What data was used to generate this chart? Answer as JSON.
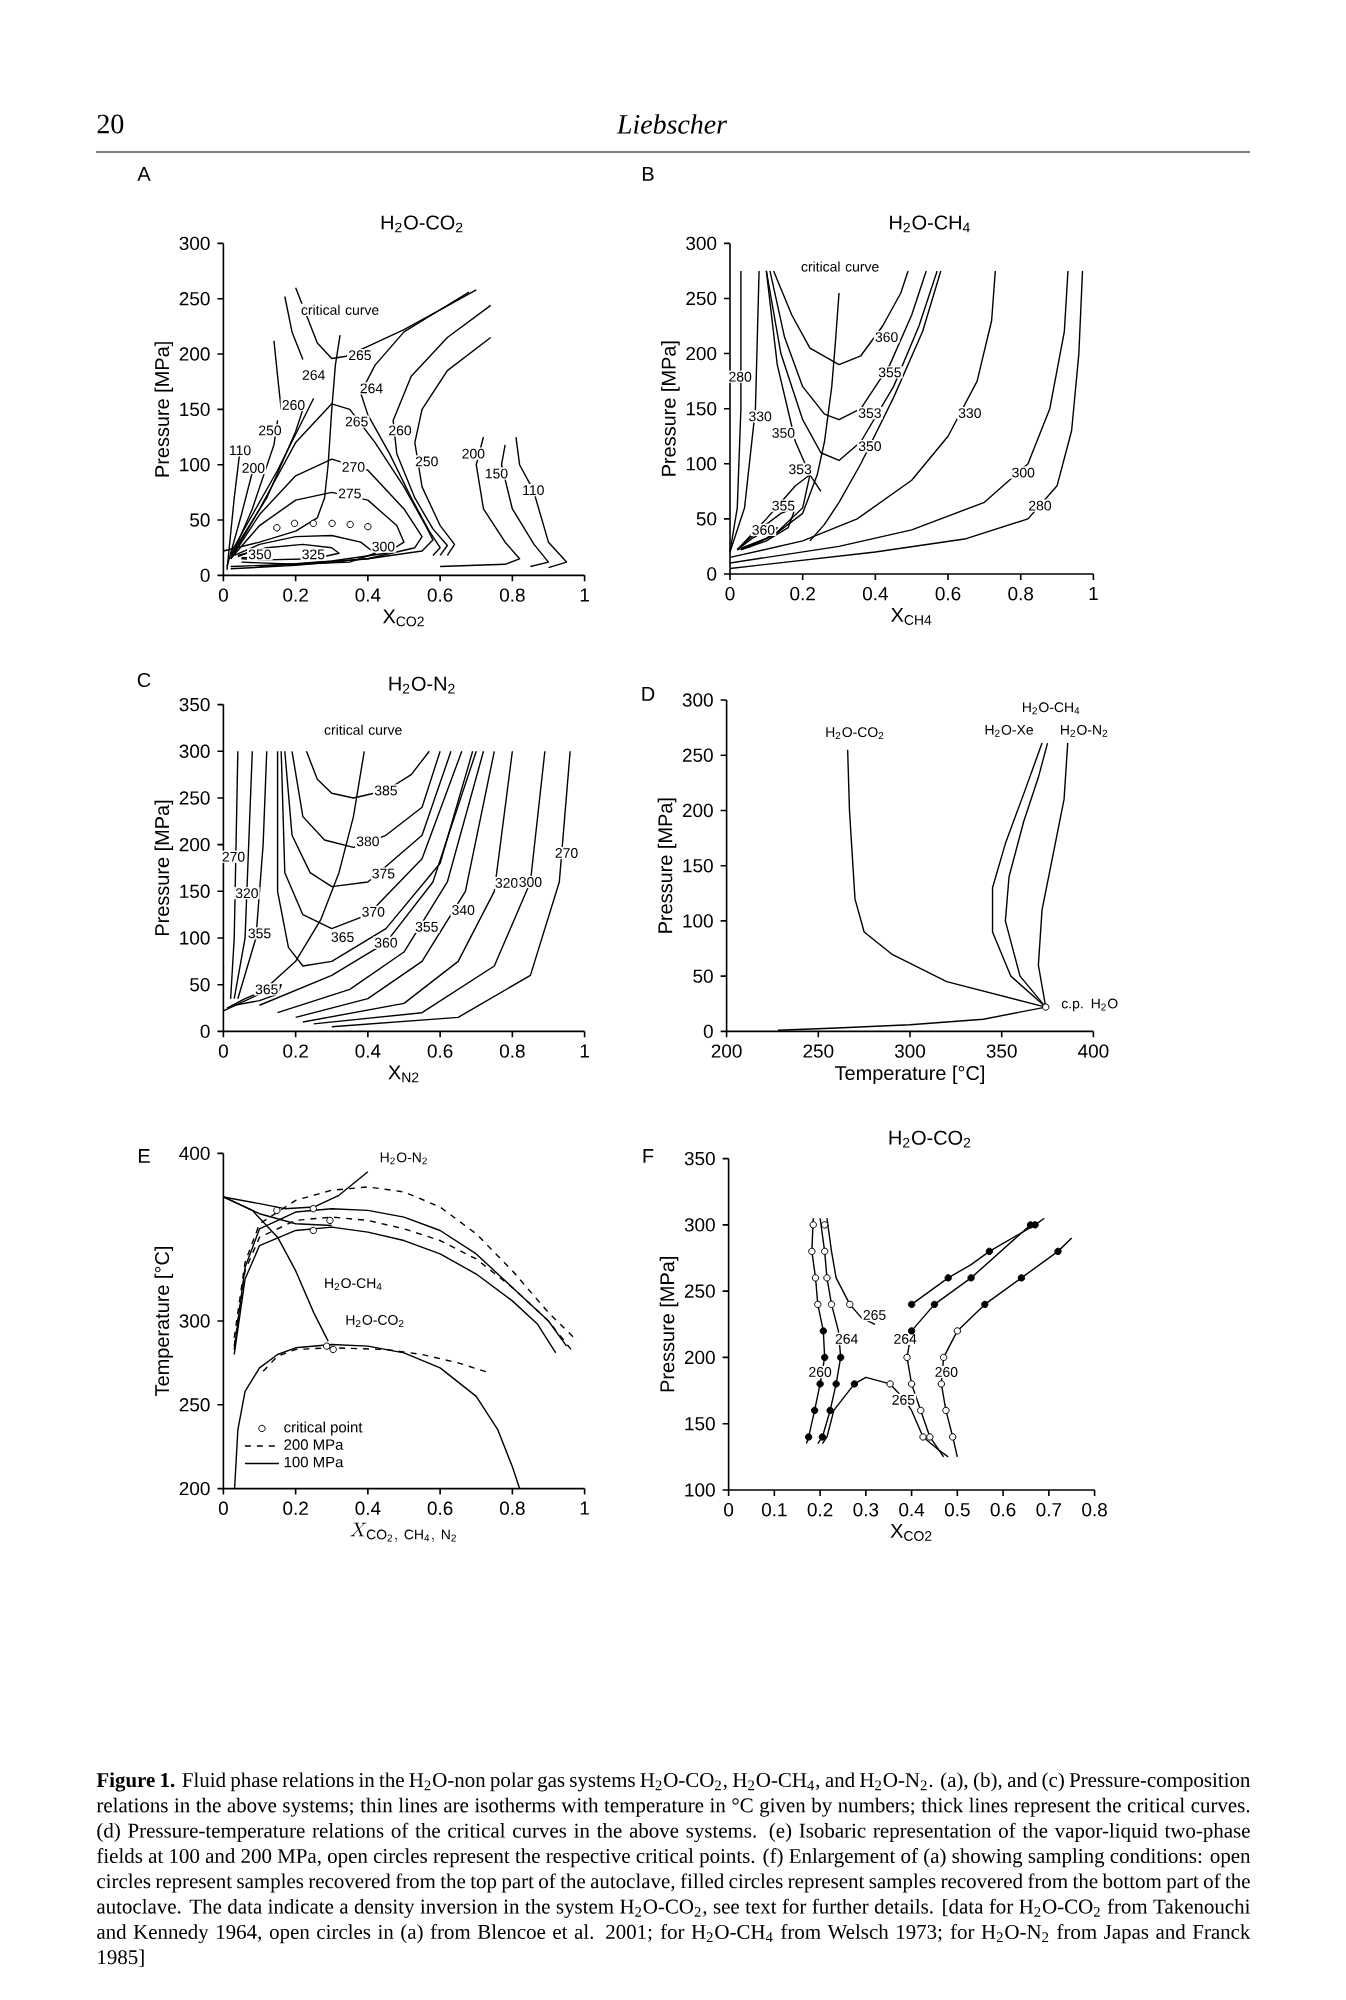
{
  "chart_data": [
    {
      "type": "other",
      "title": "Liebscher",
      "annotations": [
        "20"
      ]
    },
    {
      "type": "line",
      "title": "H$_{2}$O-CO$_{2}$",
      "xlabel": "X$_{CO2}$",
      "ylabel": "Pressure [MPa]",
      "xlim": [
        0,
        1
      ],
      "ylim": [
        0,
        300
      ],
      "xticks": [
        0,
        0.2,
        0.4,
        0.6,
        0.8,
        1
      ],
      "yticks": [
        0,
        50,
        100,
        150,
        200,
        250,
        300
      ],
      "series": [
        {
          "type": "line",
          "color": "#000000",
          "x": [
            0.0,
            0.1,
            0.2,
            0.26,
            0.28,
            0.29,
            0.3,
            0.31,
            0.323
          ],
          "values": [
            22,
            30,
            40,
            52,
            70,
            100,
            150,
            190,
            217
          ]
        },
        {
          "type": "scatter",
          "marker": "circle",
          "color": "#ffffff",
          "x": [
            0.148,
            0.197,
            0.249,
            0.301,
            0.351,
            0.4
          ],
          "values": [
            43,
            47,
            47,
            47,
            46,
            44
          ]
        },
        {
          "type": "line",
          "color": "#000000",
          "x": [
            0.2,
            0.23,
            0.26,
            0.3,
            0.34,
            0.4,
            0.5,
            0.6,
            0.68
          ],
          "values": [
            260,
            235,
            210,
            196,
            198,
            207,
            222,
            240,
            256
          ]
        },
        {
          "type": "line",
          "color": "#000000",
          "x": [
            0.7,
            0.6,
            0.5,
            0.42,
            0.38,
            0.4,
            0.46,
            0.52,
            0.57,
            0.6,
            0.58
          ],
          "values": [
            258,
            240,
            220,
            190,
            165,
            145,
            110,
            70,
            40,
            25,
            18
          ]
        },
        {
          "type": "line",
          "color": "#000000",
          "x": [
            0.74,
            0.62,
            0.52,
            0.47,
            0.48,
            0.53,
            0.58,
            0.62,
            0.6
          ],
          "values": [
            244,
            215,
            180,
            140,
            110,
            70,
            42,
            27,
            18
          ]
        },
        {
          "type": "line",
          "color": "#000000",
          "x": [
            0.74,
            0.62,
            0.55,
            0.53,
            0.55,
            0.6,
            0.64,
            0.62
          ],
          "values": [
            215,
            185,
            150,
            120,
            80,
            45,
            28,
            18
          ]
        },
        {
          "type": "line",
          "color": "#000000",
          "x": [
            0.72,
            0.7,
            0.72,
            0.78,
            0.82,
            0.78,
            0.6
          ],
          "values": [
            125,
            100,
            60,
            30,
            15,
            10,
            8
          ]
        },
        {
          "type": "line",
          "color": "#000000",
          "x": [
            0.78,
            0.77,
            0.8,
            0.86,
            0.9,
            0.85
          ],
          "values": [
            118,
            100,
            60,
            28,
            12,
            8
          ]
        },
        {
          "type": "line",
          "color": "#000000",
          "x": [
            0.81,
            0.82,
            0.858,
            0.9,
            0.95,
            0.9
          ],
          "values": [
            125,
            100,
            77,
            30,
            12,
            7
          ]
        },
        {
          "type": "line",
          "color": "#000000",
          "x": [
            0.01,
            0.03,
            0.046
          ],
          "values": [
            5,
            70,
            113
          ]
        },
        {
          "type": "line",
          "color": "#000000",
          "x": [
            0.01,
            0.05,
            0.083
          ],
          "values": [
            8,
            55,
            97
          ]
        },
        {
          "type": "line",
          "color": "#000000",
          "x": [
            0.02,
            0.08,
            0.14,
            0.15
          ],
          "values": [
            15,
            60,
            118,
            140
          ]
        },
        {
          "type": "line",
          "color": "#000000",
          "x": [
            0.02,
            0.12,
            0.2,
            0.22
          ],
          "values": [
            18,
            70,
            130,
            150
          ]
        },
        {
          "type": "line",
          "color": "#000000",
          "x": [
            0.02,
            0.15,
            0.25
          ],
          "values": [
            20,
            95,
            160
          ]
        },
        {
          "type": "line",
          "color": "#000000",
          "x": [
            0.17,
            0.19,
            0.22
          ],
          "values": [
            252,
            220,
            195
          ]
        },
        {
          "type": "line",
          "color": "#000000",
          "x": [
            0.14,
            0.15,
            0.16
          ],
          "values": [
            212,
            180,
            150
          ]
        },
        {
          "type": "line",
          "color": "#000000",
          "x": [
            0.02,
            0.1,
            0.2,
            0.3,
            0.35,
            0.42,
            0.5,
            0.56,
            0.58,
            0.55,
            0.4,
            0.2,
            0.02
          ],
          "values": [
            15,
            60,
            120,
            155,
            150,
            120,
            80,
            45,
            32,
            22,
            15,
            10,
            8
          ]
        },
        {
          "type": "line",
          "color": "#000000",
          "x": [
            0.02,
            0.1,
            0.2,
            0.3,
            0.4,
            0.5,
            0.55,
            0.53,
            0.4,
            0.2,
            0.02
          ],
          "values": [
            15,
            55,
            90,
            105,
            95,
            60,
            35,
            25,
            15,
            9,
            6
          ]
        },
        {
          "type": "line",
          "color": "#000000",
          "x": [
            0.02,
            0.1,
            0.2,
            0.3,
            0.4,
            0.48,
            0.5,
            0.45,
            0.3,
            0.1
          ],
          "values": [
            15,
            45,
            68,
            75,
            68,
            45,
            30,
            20,
            13,
            8
          ]
        },
        {
          "type": "line",
          "color": "#000000",
          "x": [
            0.03,
            0.1,
            0.2,
            0.3,
            0.38,
            0.42,
            0.35,
            0.2,
            0.05
          ],
          "values": [
            18,
            28,
            35,
            36,
            30,
            20,
            12,
            10,
            12
          ]
        },
        {
          "type": "line",
          "color": "#000000",
          "x": [
            0.04,
            0.12,
            0.22,
            0.3,
            0.32,
            0.25,
            0.12,
            0.05
          ],
          "values": [
            18,
            25,
            28,
            25,
            20,
            15,
            14,
            15
          ]
        },
        {
          "type": "line",
          "color": "#000000",
          "x": [
            0.04,
            0.08,
            0.12,
            0.1,
            0.05
          ],
          "values": [
            17,
            22,
            21,
            16,
            16
          ]
        }
      ],
      "annotations": [
        "A",
        "critical curve",
        {
          "text": "110",
          "x": 0.046,
          "y": 113
        },
        {
          "text": "200",
          "x": 0.083,
          "y": 97
        },
        {
          "text": "250",
          "x": 0.129,
          "y": 131
        },
        {
          "text": "260",
          "x": 0.194,
          "y": 154
        },
        {
          "text": "264",
          "x": 0.25,
          "y": 181
        },
        {
          "text": "265",
          "x": 0.378,
          "y": 199
        },
        {
          "text": "264",
          "x": 0.41,
          "y": 169
        },
        {
          "text": "265",
          "x": 0.369,
          "y": 139
        },
        {
          "text": "260",
          "x": 0.489,
          "y": 131
        },
        {
          "text": "250",
          "x": 0.563,
          "y": 103
        },
        {
          "text": "270",
          "x": 0.36,
          "y": 98
        },
        {
          "text": "275",
          "x": 0.35,
          "y": 74
        },
        {
          "text": "300",
          "x": 0.443,
          "y": 26
        },
        {
          "text": "325",
          "x": 0.249,
          "y": 19
        },
        {
          "text": "350",
          "x": 0.101,
          "y": 19
        },
        {
          "text": "200",
          "x": 0.692,
          "y": 110
        },
        {
          "text": "150",
          "x": 0.756,
          "y": 92
        },
        {
          "text": "110",
          "x": 0.858,
          "y": 77
        }
      ]
    },
    {
      "type": "line",
      "title": "H$_{2}$O-CH$_{4}$",
      "xlabel": "X$_{CH4}$",
      "ylabel": "Pressure [MPa]",
      "xlim": [
        0,
        1
      ],
      "ylim": [
        0,
        300
      ],
      "xticks": [
        0,
        0.2,
        0.4,
        0.6,
        0.8,
        1
      ],
      "yticks": [
        0,
        50,
        100,
        150,
        200,
        250,
        300
      ],
      "series": [
        {
          "type": "line",
          "color": "#000000",
          "x": [
            0.02,
            0.12,
            0.2,
            0.24,
            0.26,
            0.28,
            0.29,
            0.3
          ],
          "values": [
            22,
            35,
            55,
            90,
            120,
            170,
            210,
            255
          ]
        },
        {
          "type": "line",
          "color": "#000000",
          "x": [
            0.12,
            0.17,
            0.22,
            0.3,
            0.36,
            0.42,
            0.47,
            0.49
          ],
          "values": [
            275,
            235,
            205,
            190,
            198,
            225,
            255,
            275
          ]
        },
        {
          "type": "line",
          "color": "#000000",
          "x": [
            0.11,
            0.15,
            0.2,
            0.26,
            0.3,
            0.36,
            0.44,
            0.5,
            0.54
          ],
          "values": [
            275,
            215,
            170,
            145,
            140,
            150,
            190,
            235,
            275
          ]
        },
        {
          "type": "line",
          "color": "#000000",
          "x": [
            0.1,
            0.14,
            0.2,
            0.25,
            0.3,
            0.36,
            0.45,
            0.52,
            0.57
          ],
          "values": [
            275,
            200,
            140,
            110,
            103,
            120,
            170,
            225,
            275
          ]
        },
        {
          "type": "line",
          "color": "#000000",
          "x": [
            0.1,
            0.13,
            0.18,
            0.22,
            0.25
          ],
          "values": [
            275,
            190,
            120,
            90,
            75
          ]
        },
        {
          "type": "line",
          "color": "#000000",
          "x": [
            0.22,
            0.26,
            0.3,
            0.36,
            0.45,
            0.53,
            0.58
          ],
          "values": [
            30,
            45,
            65,
            100,
            160,
            220,
            275
          ]
        },
        {
          "type": "line",
          "color": "#000000",
          "x": [
            0.0,
            0.02,
            0.03,
            0.03
          ],
          "values": [
            20,
            60,
            150,
            275
          ]
        },
        {
          "type": "line",
          "color": "#000000",
          "x": [
            0.0,
            0.04,
            0.07,
            0.08
          ],
          "values": [
            20,
            60,
            150,
            275
          ]
        },
        {
          "type": "line",
          "color": "#000000",
          "x": [
            0.02,
            0.1,
            0.18,
            0.22,
            0.2,
            0.12,
            0.03
          ],
          "values": [
            22,
            50,
            80,
            90,
            60,
            35,
            22
          ]
        },
        {
          "type": "line",
          "color": "#000000",
          "x": [
            0.02,
            0.08,
            0.14,
            0.18,
            0.16,
            0.1,
            0.03
          ],
          "values": [
            22,
            40,
            55,
            60,
            42,
            30,
            22
          ]
        },
        {
          "type": "line",
          "color": "#000000",
          "x": [
            0.02,
            0.06,
            0.1,
            0.13,
            0.1,
            0.05
          ],
          "values": [
            22,
            32,
            40,
            42,
            32,
            24
          ]
        },
        {
          "type": "line",
          "color": "#000000",
          "x": [
            0.0,
            0.2,
            0.35,
            0.5,
            0.6,
            0.68,
            0.72,
            0.73
          ],
          "values": [
            15,
            30,
            50,
            85,
            125,
            175,
            230,
            275
          ]
        },
        {
          "type": "line",
          "color": "#000000",
          "x": [
            0.0,
            0.3,
            0.5,
            0.7,
            0.82,
            0.88,
            0.92,
            0.93
          ],
          "values": [
            10,
            25,
            40,
            65,
            100,
            150,
            220,
            275
          ]
        },
        {
          "type": "line",
          "color": "#000000",
          "x": [
            0.0,
            0.4,
            0.65,
            0.82,
            0.9,
            0.94,
            0.96,
            0.97
          ],
          "values": [
            5,
            20,
            32,
            50,
            80,
            130,
            200,
            275
          ]
        }
      ],
      "annotations": [
        "B",
        "critical curve",
        {
          "text": "280",
          "x": 0.028,
          "y": 179
        },
        {
          "text": "330",
          "x": 0.083,
          "y": 143
        },
        {
          "text": "350",
          "x": 0.147,
          "y": 128
        },
        {
          "text": "360",
          "x": 0.431,
          "y": 215
        },
        {
          "text": "355",
          "x": 0.44,
          "y": 183
        },
        {
          "text": "353",
          "x": 0.385,
          "y": 146
        },
        {
          "text": "350",
          "x": 0.385,
          "y": 116
        },
        {
          "text": "353",
          "x": 0.193,
          "y": 95
        },
        {
          "text": "355",
          "x": 0.147,
          "y": 62
        },
        {
          "text": "360",
          "x": 0.092,
          "y": 40
        },
        {
          "text": "330",
          "x": 0.66,
          "y": 146
        },
        {
          "text": "300",
          "x": 0.807,
          "y": 92
        },
        {
          "text": "280",
          "x": 0.853,
          "y": 62
        }
      ]
    },
    {
      "type": "line",
      "title": "H$_{2}$O-N$_{2}$",
      "xlabel": "X$_{N2}$",
      "ylabel": "Pressure [MPa]",
      "xlim": [
        0,
        1
      ],
      "ylim": [
        0,
        350
      ],
      "xticks": [
        0,
        0.2,
        0.4,
        0.6,
        0.8,
        1
      ],
      "yticks": [
        0,
        50,
        100,
        150,
        200,
        250,
        300,
        350
      ],
      "series": [
        {
          "type": "line",
          "color": "#000000",
          "x": [
            0,
            0.1,
            0.2,
            0.27,
            0.32,
            0.36,
            0.39
          ],
          "values": [
            22,
            40,
            75,
            120,
            170,
            230,
            300
          ]
        },
        {
          "type": "line",
          "color": "#000000",
          "x": [
            0.23,
            0.26,
            0.3,
            0.36,
            0.45,
            0.52,
            0.57
          ],
          "values": [
            300,
            270,
            255,
            250,
            258,
            275,
            300
          ]
        },
        {
          "type": "line",
          "color": "#000000",
          "x": [
            0.19,
            0.22,
            0.28,
            0.36,
            0.45,
            0.55,
            0.6
          ],
          "values": [
            300,
            230,
            205,
            197,
            210,
            240,
            300
          ]
        },
        {
          "type": "line",
          "color": "#000000",
          "x": [
            0.17,
            0.19,
            0.24,
            0.3,
            0.4,
            0.55,
            0.63
          ],
          "values": [
            300,
            210,
            170,
            155,
            160,
            210,
            300
          ]
        },
        {
          "type": "line",
          "color": "#000000",
          "x": [
            0.16,
            0.17,
            0.22,
            0.3,
            0.4,
            0.55,
            0.66
          ],
          "values": [
            300,
            170,
            125,
            110,
            125,
            185,
            300
          ]
        },
        {
          "type": "line",
          "color": "#000000",
          "x": [
            0.15,
            0.15,
            0.18,
            0.22,
            0.3,
            0.45,
            0.6,
            0.69
          ],
          "values": [
            300,
            150,
            90,
            70,
            75,
            110,
            180,
            300
          ]
        },
        {
          "type": "line",
          "color": "#000000",
          "x": [
            0.1,
            0.3,
            0.45,
            0.58,
            0.7
          ],
          "values": [
            28,
            60,
            95,
            160,
            300
          ]
        },
        {
          "type": "line",
          "color": "#000000",
          "x": [
            0.15,
            0.35,
            0.5,
            0.62,
            0.72
          ],
          "values": [
            20,
            45,
            85,
            160,
            300
          ]
        },
        {
          "type": "line",
          "color": "#000000",
          "x": [
            0.2,
            0.4,
            0.55,
            0.67,
            0.75
          ],
          "values": [
            15,
            35,
            75,
            150,
            300
          ]
        },
        {
          "type": "line",
          "color": "#000000",
          "x": [
            0.22,
            0.5,
            0.65,
            0.75,
            0.8
          ],
          "values": [
            10,
            30,
            75,
            150,
            300
          ]
        },
        {
          "type": "line",
          "color": "#000000",
          "x": [
            0.25,
            0.55,
            0.75,
            0.85,
            0.89
          ],
          "values": [
            8,
            20,
            70,
            160,
            300
          ]
        },
        {
          "type": "line",
          "color": "#000000",
          "x": [
            0.3,
            0.65,
            0.85,
            0.93,
            0.96
          ],
          "values": [
            5,
            15,
            60,
            160,
            300
          ]
        },
        {
          "type": "line",
          "color": "#000000",
          "x": [
            0.02,
            0.03,
            0.04
          ],
          "values": [
            35,
            100,
            300
          ]
        },
        {
          "type": "line",
          "color": "#000000",
          "x": [
            0.03,
            0.06,
            0.08
          ],
          "values": [
            35,
            100,
            300
          ]
        },
        {
          "type": "line",
          "color": "#000000",
          "x": [
            0.04,
            0.09,
            0.11,
            0.12
          ],
          "values": [
            35,
            100,
            200,
            300
          ]
        },
        {
          "type": "line",
          "color": "#000000",
          "x": [
            0.01,
            0.06,
            0.12,
            0.16,
            0.15,
            0.1,
            0.03
          ],
          "values": [
            25,
            35,
            45,
            50,
            40,
            33,
            28
          ]
        }
      ],
      "annotations": [
        "C",
        "critical curve",
        {
          "text": "385",
          "x": 0.45,
          "y": 258
        },
        {
          "text": "380",
          "x": 0.4,
          "y": 203.5
        },
        {
          "text": "375",
          "x": 0.443,
          "y": 169
        },
        {
          "text": "370",
          "x": 0.415,
          "y": 128
        },
        {
          "text": "365",
          "x": 0.33,
          "y": 101
        },
        {
          "text": "365",
          "x": 0.12,
          "y": 45
        },
        {
          "text": "360",
          "x": 0.45,
          "y": 95
        },
        {
          "text": "355",
          "x": 0.563,
          "y": 112
        },
        {
          "text": "340",
          "x": 0.664,
          "y": 130
        },
        {
          "text": "320",
          "x": 0.784,
          "y": 159
        },
        {
          "text": "300",
          "x": 0.85,
          "y": 160
        },
        {
          "text": "270",
          "x": 0.95,
          "y": 191
        },
        {
          "text": "270",
          "x": 0.028,
          "y": 187
        },
        {
          "text": "320",
          "x": 0.065,
          "y": 148
        },
        {
          "text": "355",
          "x": 0.1,
          "y": 105
        }
      ]
    },
    {
      "type": "line",
      "xlabel": "Temperature [°C]",
      "ylabel": "Pressure [MPa]",
      "xlim": [
        200,
        400
      ],
      "ylim": [
        0,
        300
      ],
      "xticks": [
        200,
        250,
        300,
        350,
        400
      ],
      "yticks": [
        0,
        50,
        100,
        150,
        200,
        250,
        300
      ],
      "series": [
        {
          "type": "line",
          "color": "#000000",
          "x": [
            228,
            260,
            300,
            340,
            374
          ],
          "values": [
            1,
            3,
            6,
            11,
            22
          ]
        },
        {
          "type": "line",
          "color": "#000000",
          "x": [
            374,
            320,
            290,
            275,
            270,
            267,
            266
          ],
          "values": [
            22,
            45,
            70,
            90,
            120,
            200,
            255
          ]
        },
        {
          "type": "line",
          "color": "#000000",
          "x": [
            374,
            355,
            345,
            345,
            352,
            362,
            372
          ],
          "values": [
            22,
            50,
            90,
            130,
            170,
            215,
            261
          ]
        },
        {
          "type": "line",
          "color": "#000000",
          "x": [
            374,
            360,
            352,
            354,
            362,
            370,
            375
          ],
          "values": [
            22,
            50,
            100,
            140,
            190,
            230,
            261
          ]
        },
        {
          "type": "line",
          "color": "#000000",
          "x": [
            374,
            370,
            372,
            378,
            384,
            386
          ],
          "values": [
            22,
            60,
            110,
            160,
            210,
            261
          ]
        },
        {
          "type": "scatter",
          "marker": "circle",
          "color": "#ffffff",
          "x": [
            374
          ],
          "values": [
            22
          ]
        }
      ],
      "annotations": [
        "D",
        "H$_{2}$O-CO$_{2}$",
        "H$_{2}$O-Xe",
        "H$_{2}$O-CH$_{4}$",
        "H$_{2}$O-N$_{2}$",
        "c.p. H$_{2}$O"
      ]
    },
    {
      "type": "line",
      "xlabel": "X_{\\mathrm{CO_{2},\\ CH_{4},\\ N_{2}}}",
      "ylabel": "Temperature [°C]",
      "xlim": [
        0,
        1
      ],
      "ylim": [
        200,
        400
      ],
      "xticks": [
        0,
        0.2,
        0.4,
        0.6,
        0.8,
        1
      ],
      "yticks": [
        200,
        250,
        300,
        400
      ],
      "legend": "bottom left",
      "series": [
        {
          "type": "scatter",
          "name": "critical point",
          "marker": "circle",
          "color": "#ffffff",
          "x": [
            0.148,
            0.249,
            0.249,
            0.295,
            0.286,
            0.304
          ],
          "values": [
            366,
            367,
            354,
            360,
            285,
            283
          ]
        },
        {
          "type": "line",
          "name": "200 MPa",
          "line_style": "dashed",
          "color": "#000000",
          "x": [
            0.03,
            0.06,
            0.1,
            0.2,
            0.3,
            0.4,
            0.5,
            0.6,
            0.7,
            0.8,
            0.9,
            0.98
          ],
          "values": [
            290,
            335,
            358,
            372,
            378,
            380,
            377,
            368,
            352,
            330,
            305,
            288
          ]
        },
        {
          "type": "line",
          "name": "100 MPa",
          "color": "#000000",
          "x": [
            0.031,
            0.04,
            0.06,
            0.1,
            0.15,
            0.2,
            0.3,
            0.4,
            0.5,
            0.6,
            0.7,
            0.76,
            0.8,
            0.82
          ],
          "values": [
            200,
            235,
            258,
            272,
            280,
            284,
            286,
            285,
            281,
            272,
            255,
            235,
            213,
            200
          ]
        },
        {
          "type": "line",
          "line_style": "dashed",
          "color": "#000000",
          "x": [
            0.11,
            0.15,
            0.2,
            0.3,
            0.45,
            0.55,
            0.65,
            0.738
          ],
          "values": [
            270,
            279,
            283,
            284,
            283,
            280,
            275,
            269
          ]
        },
        {
          "type": "line",
          "line_style": "dashed",
          "color": "#000000",
          "x": [
            0.03,
            0.06,
            0.1,
            0.2,
            0.3,
            0.4,
            0.5,
            0.6,
            0.7,
            0.8,
            0.9,
            0.97
          ],
          "values": [
            285,
            330,
            350,
            360,
            362,
            360,
            355,
            348,
            337,
            320,
            300,
            281
          ]
        },
        {
          "type": "line",
          "color": "#000000",
          "x": [
            0.03,
            0.06,
            0.1,
            0.2,
            0.3,
            0.4,
            0.5,
            0.6,
            0.7,
            0.8,
            0.87,
            0.92
          ],
          "values": [
            280,
            325,
            345,
            354,
            356,
            353,
            348,
            340,
            328,
            312,
            298,
            281
          ]
        },
        {
          "type": "line",
          "color": "#000000",
          "x": [
            0.03,
            0.06,
            0.1,
            0.2,
            0.3,
            0.4,
            0.5,
            0.6,
            0.7,
            0.8,
            0.9,
            0.95
          ],
          "values": [
            283,
            332,
            355,
            365,
            367,
            366,
            362,
            354,
            340,
            320,
            300,
            285
          ]
        },
        {
          "type": "line",
          "color": "#000000",
          "x": [
            0,
            0.1,
            0.17,
            0.25,
            0.32,
            0.4
          ],
          "values": [
            374,
            370,
            367,
            368,
            375,
            389
          ]
        },
        {
          "type": "line",
          "color": "#000000",
          "x": [
            0,
            0.1,
            0.2,
            0.3
          ],
          "values": [
            374,
            364,
            358,
            357
          ]
        },
        {
          "type": "line",
          "color": "#000000",
          "x": [
            0,
            0.08,
            0.15,
            0.2,
            0.25,
            0.29
          ],
          "values": [
            374,
            366,
            350,
            330,
            305,
            288
          ]
        }
      ],
      "annotations": [
        "E",
        "H$_{2}$O-N$_{2}$",
        "H$_{2}$O-CH$_{4}$",
        "H$_{2}$O-CO$_{2}$"
      ]
    },
    {
      "type": "line",
      "title": "H$_{2}$O-CO$_{2}$",
      "xlabel": "X$_{CO2}$",
      "ylabel": "Pressure [MPa]",
      "xlim": [
        0,
        0.8
      ],
      "ylim": [
        100,
        350
      ],
      "xticks": [
        0,
        0.1,
        0.2,
        0.3,
        0.4,
        0.5,
        0.6,
        0.7,
        0.8
      ],
      "yticks": [
        100,
        150,
        200,
        250,
        300,
        350
      ],
      "series": [
        {
          "type": "line",
          "color": "#000000",
          "x": [
            0.185,
            0.182,
            0.19,
            0.195,
            0.207,
            0.21,
            0.2,
            0.188,
            0.175,
            0.17
          ],
          "values": [
            305,
            280,
            260,
            240,
            220,
            200,
            180,
            160,
            140,
            135
          ]
        },
        {
          "type": "line",
          "color": "#000000",
          "x": [
            0.2,
            0.21,
            0.215,
            0.225,
            0.24,
            0.245,
            0.235,
            0.222,
            0.205,
            0.195
          ],
          "values": [
            305,
            280,
            260,
            240,
            220,
            200,
            180,
            160,
            140,
            135
          ]
        },
        {
          "type": "line",
          "color": "#000000",
          "x": [
            0.215,
            0.225,
            0.235,
            0.265,
            0.29,
            0.32
          ],
          "values": [
            305,
            280,
            260,
            240,
            230,
            225
          ]
        },
        {
          "type": "line",
          "color": "#000000",
          "x": [
            0.205,
            0.215,
            0.23,
            0.275,
            0.3,
            0.353,
            0.38
          ],
          "values": [
            135,
            140,
            160,
            180,
            185,
            180,
            170
          ]
        },
        {
          "type": "line",
          "color": "#000000",
          "x": [
            0.4,
            0.48,
            0.53,
            0.57,
            0.67,
            0.69
          ],
          "values": [
            240,
            260,
            270,
            280,
            300,
            305
          ]
        },
        {
          "type": "line",
          "color": "#000000",
          "x": [
            0.66,
            0.53,
            0.45,
            0.4,
            0.39,
            0.4,
            0.42,
            0.44,
            0.47
          ],
          "values": [
            300,
            260,
            240,
            220,
            200,
            180,
            160,
            140,
            125
          ]
        },
        {
          "type": "line",
          "color": "#000000",
          "x": [
            0.75,
            0.72,
            0.64,
            0.56,
            0.5,
            0.47,
            0.465,
            0.475,
            0.49,
            0.5
          ],
          "values": [
            290,
            280,
            260,
            240,
            220,
            200,
            180,
            160,
            140,
            125
          ]
        },
        {
          "type": "line",
          "color": "#000000",
          "x": [
            0.38,
            0.4,
            0.425,
            0.46,
            0.48
          ],
          "values": [
            170,
            160,
            140,
            130,
            125
          ]
        },
        {
          "type": "scatter",
          "marker": "circle",
          "color": "#000000",
          "x": [
            0.207,
            0.21,
            0.2,
            0.188,
            0.175,
            0.245,
            0.235,
            0.222,
            0.205,
            0.275,
            0.4,
            0.48,
            0.57,
            0.67,
            0.4,
            0.45,
            0.53,
            0.66,
            0.56,
            0.64,
            0.72
          ],
          "values": [
            220,
            200,
            180,
            160,
            140,
            200,
            180,
            160,
            140,
            180,
            240,
            260,
            280,
            300,
            220,
            240,
            260,
            300,
            240,
            260,
            280
          ]
        },
        {
          "type": "scatter",
          "marker": "circle",
          "color": "#ffffff",
          "x": [
            0.185,
            0.182,
            0.19,
            0.195,
            0.21,
            0.21,
            0.215,
            0.225,
            0.265,
            0.353,
            0.39,
            0.4,
            0.42,
            0.44,
            0.5,
            0.47,
            0.465,
            0.475,
            0.49,
            0.425
          ],
          "values": [
            300,
            280,
            260,
            240,
            300,
            280,
            260,
            240,
            240,
            180,
            200,
            180,
            160,
            140,
            220,
            200,
            180,
            160,
            140,
            140
          ]
        }
      ],
      "annotations": [
        "F",
        {
          "text": "265",
          "x": 0.319,
          "y": 232
        },
        {
          "text": "264",
          "x": 0.258,
          "y": 214
        },
        {
          "text": "260",
          "x": 0.2,
          "y": 189
        },
        {
          "text": "264",
          "x": 0.386,
          "y": 214
        },
        {
          "text": "260",
          "x": 0.476,
          "y": 189
        },
        {
          "text": "265",
          "x": 0.382,
          "y": 168
        }
      ]
    },
    {
      "type": "other",
      "annotations": [
        "**Figure 1.** Fluid phase relations in the H$_{2}$O-non polar gas systems H$_{2}$O-CO$_{2}$, H$_{2}$O-CH$_{4}$, and H$_{2}$O-N$_{2}$. (a), (b), and (c) Pressure-composition relations in the above systems; thin lines are isotherms with temperature in °C given by numbers; thick lines represent the critical curves. (d) Pressure-temperature relations of the critical curves in the above systems. (e) Isobaric representation of the vapor-liquid two-phase fields at 100 and 200 MPa, open circles represent the respective critical points. (f) Enlargement of (a) showing sampling conditions: open circles represent samples recovered from the top part of the autoclave, filled circles represent samples recovered from the bottom part of the autoclave. The data indicate a density inversion in the system H$_{2}$O-CO$_{2}$, see text for further details. [data for H$_{2}$O-CO$_{2}$ from Takenouchi and Kennedy 1964, open circles in (a) from Blencoe et al. 2001; for H$_{2}$O-CH$_{4}$ from Welsch 1973; for H$_{2}$O-N$_{2}$ from Japas and Franck 1985]"
      ]
    }
  ]
}
